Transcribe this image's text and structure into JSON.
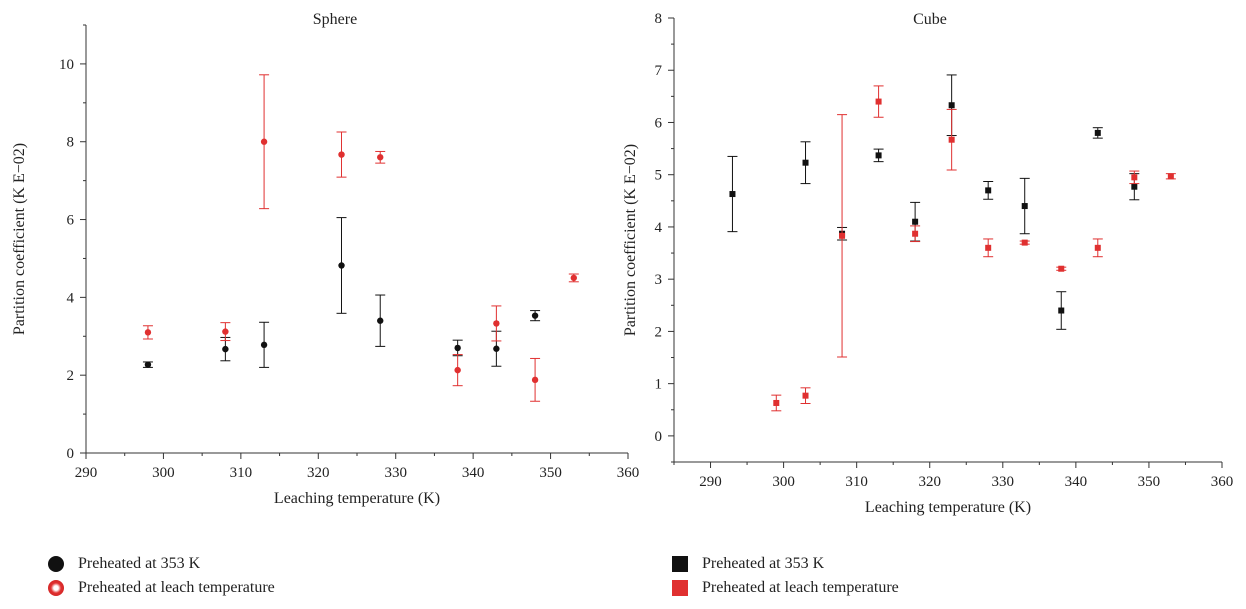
{
  "chart_data": [
    {
      "type": "scatter",
      "title": "Sphere",
      "xlabel": "Leaching temperature (K)",
      "ylabel": "Partition coefficient (K E−02)",
      "xlim": [
        290,
        360
      ],
      "ylim": [
        0,
        11
      ],
      "xticks": [
        290,
        300,
        310,
        320,
        330,
        340,
        350,
        360
      ],
      "yticks": [
        0,
        2,
        4,
        6,
        8,
        10
      ],
      "marker": "circle",
      "series": [
        {
          "name": "Preheated at 353 K",
          "color": "#111111",
          "points": [
            {
              "x": 298,
              "y": 2.27,
              "err": 0.07
            },
            {
              "x": 308,
              "y": 2.67,
              "err": 0.3
            },
            {
              "x": 313,
              "y": 2.78,
              "err": 0.58
            },
            {
              "x": 323,
              "y": 4.82,
              "err": 1.23
            },
            {
              "x": 328,
              "y": 3.4,
              "err": 0.66
            },
            {
              "x": 338,
              "y": 2.7,
              "err": 0.2
            },
            {
              "x": 343,
              "y": 2.68,
              "err": 0.45
            },
            {
              "x": 348,
              "y": 3.53,
              "err": 0.13
            }
          ]
        },
        {
          "name": "Preheated at leach temperature",
          "color": "#e03030",
          "points": [
            {
              "x": 298,
              "y": 3.1,
              "err": 0.17
            },
            {
              "x": 308,
              "y": 3.12,
              "err": 0.23
            },
            {
              "x": 313,
              "y": 8.0,
              "err": 1.72
            },
            {
              "x": 323,
              "y": 7.67,
              "err": 0.58
            },
            {
              "x": 328,
              "y": 7.6,
              "err": 0.15
            },
            {
              "x": 338,
              "y": 2.13,
              "err": 0.4
            },
            {
              "x": 343,
              "y": 3.33,
              "err": 0.45
            },
            {
              "x": 348,
              "y": 1.88,
              "err": 0.55
            },
            {
              "x": 353,
              "y": 4.5,
              "err": 0.1
            }
          ]
        }
      ]
    },
    {
      "type": "scatter",
      "title": "Cube",
      "xlabel": "Leaching temperature (K)",
      "ylabel": "Partition coefficient (K E−02)",
      "xlim": [
        285,
        360
      ],
      "ylim": [
        -0.5,
        8
      ],
      "xticks": [
        290,
        300,
        310,
        320,
        330,
        340,
        350,
        360
      ],
      "yticks": [
        0,
        1,
        2,
        3,
        4,
        5,
        6,
        7,
        8
      ],
      "marker": "square",
      "series": [
        {
          "name": "Preheated at 353 K",
          "color": "#111111",
          "points": [
            {
              "x": 293,
              "y": 4.63,
              "err": 0.72
            },
            {
              "x": 303,
              "y": 5.23,
              "err": 0.4
            },
            {
              "x": 308,
              "y": 3.87,
              "err": 0.12
            },
            {
              "x": 313,
              "y": 5.37,
              "err": 0.12
            },
            {
              "x": 318,
              "y": 4.1,
              "err": 0.37
            },
            {
              "x": 323,
              "y": 6.33,
              "err": 0.58
            },
            {
              "x": 328,
              "y": 4.7,
              "err": 0.17
            },
            {
              "x": 333,
              "y": 4.4,
              "err": 0.53
            },
            {
              "x": 338,
              "y": 2.4,
              "err": 0.36
            },
            {
              "x": 343,
              "y": 5.8,
              "err": 0.1
            },
            {
              "x": 348,
              "y": 4.77,
              "err": 0.25
            }
          ]
        },
        {
          "name": "Preheated at leach temperature",
          "color": "#e03030",
          "points": [
            {
              "x": 299,
              "y": 0.63,
              "err": 0.15
            },
            {
              "x": 303,
              "y": 0.77,
              "err": 0.15
            },
            {
              "x": 308,
              "y": 3.83,
              "err": 2.32
            },
            {
              "x": 313,
              "y": 6.4,
              "err": 0.3
            },
            {
              "x": 318,
              "y": 3.87,
              "err": 0.15
            },
            {
              "x": 323,
              "y": 5.67,
              "err": 0.58
            },
            {
              "x": 328,
              "y": 3.6,
              "err": 0.17
            },
            {
              "x": 333,
              "y": 3.7,
              "err": 0.03
            },
            {
              "x": 338,
              "y": 3.2,
              "err": 0.03
            },
            {
              "x": 343,
              "y": 3.6,
              "err": 0.17
            },
            {
              "x": 348,
              "y": 4.95,
              "err": 0.12
            },
            {
              "x": 353,
              "y": 4.97,
              "err": 0.05
            }
          ]
        }
      ]
    }
  ],
  "legend_left": {
    "item1": "Preheated at 353 K",
    "item2": "Preheated at leach temperature"
  },
  "legend_right": {
    "item1": "Preheated at 353 K",
    "item2": "Preheated at leach temperature"
  }
}
